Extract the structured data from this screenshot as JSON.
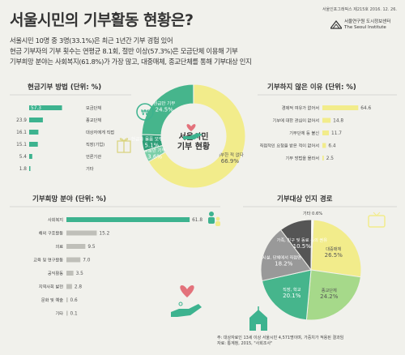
{
  "header": {
    "title": "서울시민의 기부활동 현황은?",
    "series_info": "서울인포그래픽스 제215호 2016. 12. 26.",
    "org_kr": "서울연구원 도시정보센터",
    "org_en": "The Seoul Institute"
  },
  "intro": [
    "서울시민 10명 중 3명(33.1%)은 최근 1년간 기부 경험 있어",
    "현금 기부자의 기부 횟수는 연평균 8.1회, 절반 이상(57.3%)은 모금단체 이용해 기부",
    "기부희망 분야는 사회복지(61.8%)가 가장 많고, 대중매체, 종교단체를 통해 기부대상 인지"
  ],
  "footer": {
    "note": "주: 대상자료인 13세 이상 서울시민 4,571명이며, 가중치가 적용된 결과임",
    "source": "자료: 통계청, 2015, \"사회조사\""
  },
  "colors": {
    "green": "#3db38f",
    "yellow": "#f2ec8b",
    "ring_green": "#46b58c",
    "gray_dark": "#555555",
    "gray_mid": "#999999",
    "gray_light": "#d4d4d0",
    "pink": "#e3727b"
  },
  "icons": [
    "heart-hand-icon",
    "coin-hand-icon",
    "gift-icon",
    "hand-heart-icon",
    "tv-icon",
    "church-icon",
    "people-icon"
  ],
  "chart_data": [
    {
      "type": "bar",
      "title": "현금기부 방법 (단위: %)",
      "categories": [
        "모금단체",
        "종교단체",
        "대상자에게 직접",
        "직장(기업)",
        "언론기관",
        "기타"
      ],
      "values": [
        57.3,
        23.9,
        16.1,
        15.1,
        5.4,
        1.8
      ],
      "value_labels": [
        "57.3",
        "23.9",
        "16.1",
        "15.1",
        "5.4",
        "1.8"
      ],
      "xlim": [
        0,
        65
      ]
    },
    {
      "type": "bar",
      "title": "기부하지 않은 이유 (단위: %)",
      "categories": [
        "경제적 여유가 없어서",
        "기부에 대한 관심이 없어서",
        "기부단체 등 불신",
        "직접적인 요청을 받은 적이 없어서",
        "기부 방법을 몰라서"
      ],
      "values": [
        64.6,
        14.8,
        11.7,
        6.4,
        2.5
      ],
      "value_labels": [
        "64.6",
        "14.8",
        "11.7",
        "6.4",
        "2.5"
      ],
      "xlim": [
        0,
        70
      ]
    },
    {
      "type": "pie",
      "title": "서울시민 기부 현황",
      "labels": [
        "현금만 기부",
        "기부한 적 없다",
        "현금과 물품 모두 기부",
        "물품만 기부"
      ],
      "values": [
        24.5,
        66.9,
        5.1,
        3.6
      ],
      "value_labels": [
        "24.5%",
        "66.9%",
        "5.1%",
        "3.6%"
      ],
      "center_line1": "서울시민",
      "center_line2": "기부 현황"
    },
    {
      "type": "bar",
      "title": "기부희망 분야 (단위: %)",
      "categories": [
        "사회복지",
        "해외 구호활동",
        "의료",
        "교육 및 연구활동",
        "공익활동",
        "지역사회 발전",
        "문화 및 예술",
        "기타"
      ],
      "values": [
        61.8,
        15.2,
        9.5,
        7.0,
        3.5,
        2.8,
        0.6,
        0.1
      ],
      "value_labels": [
        "61.8",
        "15.2",
        "9.5",
        "7.0",
        "3.5",
        "2.8",
        "0.6",
        "0.1"
      ],
      "xlim": [
        0,
        65
      ]
    },
    {
      "type": "pie",
      "title": "기부대상 인지 경로",
      "labels": [
        "대중매체",
        "종교단체",
        "직장, 학교",
        "시설, 단체에서 직접연락",
        "가족, 친구 및 동료 등의 권유",
        "기타"
      ],
      "values": [
        26.5,
        24.2,
        20.1,
        18.2,
        10.5,
        0.6
      ],
      "value_labels": [
        "26.5%",
        "24.2%",
        "20.1%",
        "18.2%",
        "10.5%",
        "0.6%"
      ],
      "label_lines": [
        [
          "대중매체",
          "26.5%"
        ],
        [
          "종교단체",
          "24.2%"
        ],
        [
          "직장, 학교",
          "20.1%"
        ],
        [
          "시설, 단체에서 직접연락",
          "18.2%"
        ],
        [
          "가족, 친구 및 동료 등의 권유",
          "10.5%"
        ],
        [
          "기타",
          "0.6%"
        ]
      ]
    }
  ]
}
